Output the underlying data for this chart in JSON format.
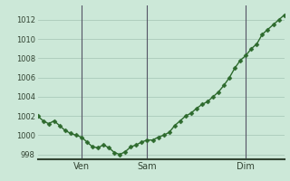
{
  "y_values": [
    1002,
    1001.5,
    1001.2,
    1001.5,
    1001,
    1000.5,
    1000.2,
    1000,
    999.8,
    999.3,
    998.8,
    998.7,
    999.0,
    998.7,
    998.2,
    998.0,
    998.3,
    998.8,
    999.0,
    999.3,
    999.5,
    999.5,
    999.8,
    1000.0,
    1000.3,
    1001.0,
    1001.5,
    1002.0,
    1002.3,
    1002.8,
    1003.2,
    1003.5,
    1004.0,
    1004.5,
    1005.2,
    1006.0,
    1007.0,
    1007.8,
    1008.3,
    1009.0,
    1009.5,
    1010.5,
    1011.0,
    1011.5,
    1012.0,
    1012.5
  ],
  "n_points": 46,
  "ven_idx": 8,
  "sam_idx": 20,
  "dim_idx": 38,
  "ylim_min": 997.5,
  "ylim_max": 1013.5,
  "yticks": [
    998,
    1000,
    1002,
    1004,
    1006,
    1008,
    1010,
    1012
  ],
  "xlim_min": 0,
  "xlim_max": 45,
  "line_color": "#2d6a2d",
  "marker_color": "#2d6a2d",
  "bg_color": "#cce8d8",
  "grid_color": "#aacaba",
  "vline_color": "#555566",
  "tick_label_color": "#334433",
  "bottom_spine_color": "#334433",
  "day_labels": [
    "Ven",
    "Sam",
    "Dim"
  ],
  "day_label_fontsize": 7,
  "ytick_fontsize": 6,
  "linewidth": 1.0,
  "markersize": 2.5
}
